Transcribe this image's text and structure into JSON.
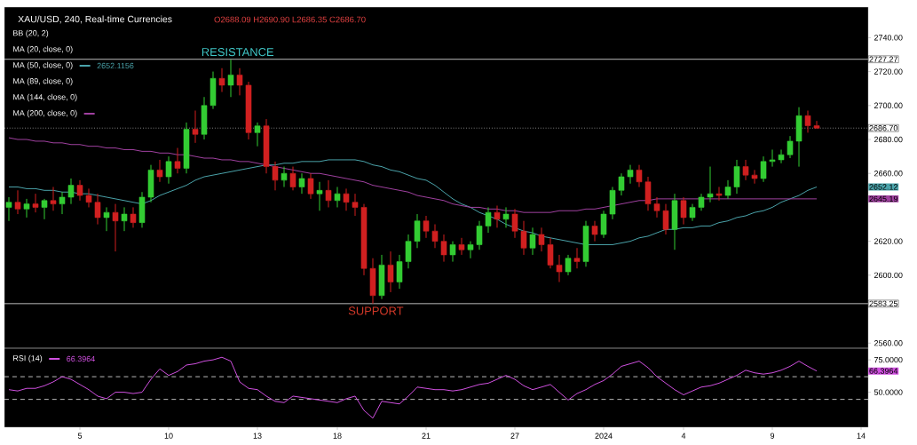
{
  "chart_data": [
    {
      "type": "candlestick",
      "title": "XAU/USD, 240, Real-time Currencies",
      "subtitle": "O2688.09 H2690.90 L2686.35 C2686.70",
      "categories": [
        null,
        null,
        null,
        null,
        null,
        null,
        null,
        null,
        "5",
        null,
        null,
        null,
        null,
        null,
        null,
        null,
        null,
        null,
        "10",
        null,
        null,
        null,
        null,
        null,
        null,
        null,
        null,
        null,
        "13",
        null,
        null,
        null,
        null,
        null,
        null,
        null,
        null,
        "18",
        null,
        null,
        null,
        null,
        null,
        null,
        null,
        null,
        null,
        "21",
        null,
        null,
        null,
        null,
        null,
        null,
        null,
        null,
        null,
        "27",
        null,
        null,
        null,
        null,
        null,
        null,
        null,
        null,
        null,
        "2024",
        null,
        null,
        null,
        null,
        null,
        null,
        null,
        null,
        "4",
        null,
        null,
        null,
        null,
        null,
        null,
        null,
        null,
        null,
        "9",
        null,
        null,
        null,
        null,
        null,
        null,
        null,
        null,
        null,
        "14"
      ],
      "ohlc": [
        [
          2640,
          2646,
          2632,
          2643
        ],
        [
          2643,
          2650,
          2636,
          2639
        ],
        [
          2639,
          2645,
          2634,
          2642
        ],
        [
          2642,
          2648,
          2637,
          2640
        ],
        [
          2640,
          2645,
          2633,
          2644
        ],
        [
          2644,
          2652,
          2638,
          2642
        ],
        [
          2642,
          2649,
          2636,
          2646
        ],
        [
          2646,
          2657,
          2642,
          2653
        ],
        [
          2653,
          2656,
          2644,
          2647
        ],
        [
          2647,
          2651,
          2640,
          2643
        ],
        [
          2643,
          2648,
          2630,
          2634
        ],
        [
          2634,
          2640,
          2626,
          2637
        ],
        [
          2637,
          2642,
          2614,
          2632
        ],
        [
          2632,
          2640,
          2626,
          2636
        ],
        [
          2636,
          2640,
          2628,
          2631
        ],
        [
          2631,
          2649,
          2628,
          2646
        ],
        [
          2646,
          2665,
          2643,
          2662
        ],
        [
          2662,
          2668,
          2655,
          2658
        ],
        [
          2658,
          2670,
          2654,
          2667
        ],
        [
          2667,
          2675,
          2660,
          2663
        ],
        [
          2663,
          2690,
          2660,
          2686
        ],
        [
          2686,
          2697,
          2678,
          2683
        ],
        [
          2683,
          2705,
          2680,
          2700
        ],
        [
          2700,
          2720,
          2698,
          2716
        ],
        [
          2716,
          2722,
          2708,
          2712
        ],
        [
          2712,
          2727,
          2705,
          2718
        ],
        [
          2718,
          2722,
          2706,
          2712
        ],
        [
          2712,
          2714,
          2680,
          2684
        ],
        [
          2684,
          2690,
          2676,
          2688
        ],
        [
          2688,
          2692,
          2660,
          2664
        ],
        [
          2664,
          2667,
          2650,
          2656
        ],
        [
          2656,
          2664,
          2652,
          2660
        ],
        [
          2660,
          2664,
          2650,
          2652
        ],
        [
          2652,
          2660,
          2648,
          2657
        ],
        [
          2657,
          2660,
          2645,
          2648
        ],
        [
          2648,
          2655,
          2638,
          2650
        ],
        [
          2650,
          2656,
          2640,
          2644
        ],
        [
          2644,
          2652,
          2640,
          2648
        ],
        [
          2648,
          2651,
          2638,
          2643
        ],
        [
          2643,
          2648,
          2635,
          2640
        ],
        [
          2640,
          2642,
          2600,
          2604
        ],
        [
          2604,
          2610,
          2583.25,
          2588
        ],
        [
          2588,
          2612,
          2586,
          2606
        ],
        [
          2606,
          2614,
          2590,
          2596
        ],
        [
          2596,
          2612,
          2592,
          2608
        ],
        [
          2608,
          2624,
          2604,
          2620
        ],
        [
          2620,
          2636,
          2616,
          2632
        ],
        [
          2632,
          2635,
          2622,
          2626
        ],
        [
          2626,
          2630,
          2616,
          2620
        ],
        [
          2620,
          2624,
          2608,
          2612
        ],
        [
          2612,
          2620,
          2608,
          2618
        ],
        [
          2618,
          2622,
          2612,
          2615
        ],
        [
          2615,
          2620,
          2610,
          2618
        ],
        [
          2618,
          2632,
          2615,
          2629
        ],
        [
          2629,
          2640,
          2625,
          2637
        ],
        [
          2637,
          2641,
          2628,
          2633
        ],
        [
          2633,
          2640,
          2628,
          2636
        ],
        [
          2636,
          2639,
          2622,
          2626
        ],
        [
          2626,
          2632,
          2612,
          2616
        ],
        [
          2616,
          2628,
          2612,
          2624
        ],
        [
          2624,
          2628,
          2614,
          2618
        ],
        [
          2618,
          2622,
          2604,
          2606
        ],
        [
          2606,
          2612,
          2596,
          2602
        ],
        [
          2602,
          2612,
          2600,
          2610
        ],
        [
          2610,
          2616,
          2604,
          2608
        ],
        [
          2608,
          2632,
          2605,
          2629
        ],
        [
          2629,
          2632,
          2620,
          2624
        ],
        [
          2624,
          2638,
          2622,
          2636
        ],
        [
          2636,
          2652,
          2633,
          2650
        ],
        [
          2650,
          2660,
          2647,
          2658
        ],
        [
          2658,
          2665,
          2654,
          2662
        ],
        [
          2662,
          2665,
          2652,
          2655
        ],
        [
          2655,
          2658,
          2638,
          2642
        ],
        [
          2642,
          2646,
          2634,
          2638
        ],
        [
          2638,
          2642,
          2624,
          2627
        ],
        [
          2627,
          2648,
          2615,
          2644
        ],
        [
          2644,
          2646,
          2630,
          2634
        ],
        [
          2634,
          2642,
          2632,
          2640
        ],
        [
          2640,
          2648,
          2638,
          2646
        ],
        [
          2646,
          2664,
          2643,
          2648
        ],
        [
          2648,
          2652,
          2644,
          2647
        ],
        [
          2647,
          2656,
          2645,
          2652
        ],
        [
          2652,
          2668,
          2648,
          2664
        ],
        [
          2664,
          2668,
          2656,
          2659
        ],
        [
          2659,
          2662,
          2654,
          2657
        ],
        [
          2657,
          2670,
          2655,
          2667
        ],
        [
          2667,
          2674,
          2664,
          2668
        ],
        [
          2668,
          2674,
          2666,
          2671
        ],
        [
          2671,
          2682,
          2669,
          2679
        ],
        [
          2679,
          2699,
          2664,
          2694
        ],
        [
          2694,
          2697,
          2684,
          2688.09
        ],
        [
          2688.09,
          2690.9,
          2686.35,
          2686.7
        ],
        null,
        null,
        null,
        null,
        null
      ],
      "series": [
        {
          "type": "line",
          "name": "MA (50, close, 0)",
          "color": "#4aa3aa",
          "values": [
            2652,
            2652,
            2651,
            2651,
            2650,
            2650,
            2649,
            2649,
            2648,
            2648,
            2647,
            2646,
            2645,
            2644,
            2643,
            2642,
            2644,
            2647,
            2649,
            2651,
            2653,
            2656,
            2658,
            2659,
            2660,
            2661,
            2662,
            2663,
            2664,
            2665,
            2665,
            2666,
            2666,
            2667,
            2667,
            2667,
            2668,
            2668,
            2668,
            2668,
            2667,
            2665,
            2664,
            2662,
            2661,
            2659,
            2657,
            2656,
            2653,
            2649,
            2645,
            2642,
            2640,
            2637,
            2635,
            2633,
            2630,
            2628,
            2626,
            2625,
            2623,
            2622,
            2621,
            2620,
            2619,
            2618,
            2618,
            2618,
            2618,
            2619,
            2620,
            2622,
            2623,
            2625,
            2627,
            2627,
            2628,
            2628,
            2629,
            2629,
            2631,
            2632,
            2634,
            2635,
            2637,
            2638,
            2640,
            2643,
            2645,
            2647,
            2650,
            2652,
            null,
            null,
            null,
            null,
            null
          ]
        },
        {
          "type": "line",
          "name": "MA (200, close, 0)",
          "color": "#a040a0",
          "values": [
            2681,
            2680,
            2680,
            2679,
            2679,
            2678,
            2678,
            2677,
            2677,
            2676,
            2676,
            2675,
            2675,
            2674,
            2674,
            2673,
            2673,
            2672,
            2672,
            2671,
            2671,
            2670,
            2669,
            2669,
            2668,
            2668,
            2667,
            2667,
            2666,
            2665,
            2664,
            2663,
            2662,
            2661,
            2660,
            2660,
            2659,
            2658,
            2657,
            2656,
            2655,
            2653,
            2652,
            2651,
            2650,
            2649,
            2647,
            2646,
            2645,
            2644,
            2642,
            2641,
            2640,
            2640,
            2639,
            2639,
            2638,
            2638,
            2637,
            2637,
            2637,
            2637,
            2638,
            2638,
            2638,
            2639,
            2639,
            2640,
            2641,
            2642,
            2643,
            2644,
            2644,
            2645,
            2645,
            2645,
            2645,
            2645,
            2645,
            2645,
            2645,
            2645,
            2645,
            2645,
            2645,
            2645,
            2645,
            2645,
            2645,
            2645,
            2645,
            2645,
            null,
            null,
            null,
            null,
            null
          ]
        }
      ],
      "ylim": [
        2557,
        2758
      ],
      "yticks": [
        {
          "value": 2560,
          "label": "2560.00"
        },
        {
          "value": 2600,
          "label": "2600.00"
        },
        {
          "value": 2620,
          "label": "2620.00"
        },
        {
          "value": 2660,
          "label": "2660.00"
        },
        {
          "value": 2680,
          "label": "2680.00"
        },
        {
          "value": 2700,
          "label": "2700.00"
        },
        {
          "value": 2720,
          "label": "2720.00"
        },
        {
          "value": 2740,
          "label": "2740.00"
        }
      ],
      "tick_labels": "y",
      "ref_lines": [
        {
          "axis": "y",
          "value": 2727.27,
          "label": "2727.27",
          "color": "#d0d0d0",
          "line_style": "solid"
        },
        {
          "axis": "y",
          "value": 2686.7,
          "label": "2686.70",
          "color": "#a0a0a0",
          "line_style": "dotted"
        },
        {
          "axis": "y",
          "value": 2583.25,
          "label": "2583.25",
          "color": "#d0d0d0",
          "line_style": "solid"
        }
      ],
      "annotations": [
        {
          "text": "RESISTANCE",
          "y": 2727.27
        },
        {
          "text": "SUPPORT",
          "y": 2583.25
        },
        "BB (20, 2)",
        "MA (20, close, 0)",
        "MA (89, close, 0)",
        "MA (144, close, 0)",
        "2652.1156",
        "2652.12",
        "2645.19"
      ],
      "legend": "top left"
    },
    {
      "type": "line",
      "categories": [
        null,
        null,
        null,
        null,
        null,
        null,
        null,
        null,
        "5",
        null,
        null,
        null,
        null,
        null,
        null,
        null,
        null,
        null,
        "10",
        null,
        null,
        null,
        null,
        null,
        null,
        null,
        null,
        null,
        "13",
        null,
        null,
        null,
        null,
        null,
        null,
        null,
        null,
        "18",
        null,
        null,
        null,
        null,
        null,
        null,
        null,
        null,
        null,
        "21",
        null,
        null,
        null,
        null,
        null,
        null,
        null,
        null,
        null,
        "27",
        null,
        null,
        null,
        null,
        null,
        null,
        null,
        null,
        null,
        "2024",
        null,
        null,
        null,
        null,
        null,
        null,
        null,
        null,
        "4",
        null,
        null,
        null,
        null,
        null,
        null,
        null,
        null,
        null,
        "9",
        null,
        null,
        null,
        null,
        null,
        null,
        null,
        null,
        null,
        "14"
      ],
      "series": [
        {
          "name": "RSI (14)",
          "color": "#d050e0",
          "values": [
            52,
            51,
            53,
            53,
            55,
            58,
            62,
            60,
            56,
            52,
            47,
            45,
            50,
            50,
            49,
            50,
            60,
            68,
            63,
            66,
            71,
            72,
            74,
            75,
            77,
            74,
            58,
            53,
            52,
            47,
            43,
            42,
            47,
            46,
            45,
            44,
            43,
            42,
            45,
            47,
            36,
            30,
            43,
            42,
            41,
            47,
            54,
            53,
            52,
            52,
            51,
            52,
            54,
            56,
            57,
            60,
            63,
            60,
            55,
            52,
            54,
            56,
            50,
            44,
            49,
            52,
            56,
            59,
            64,
            70,
            72,
            74,
            69,
            62,
            57,
            52,
            48,
            51,
            54,
            55,
            57,
            60,
            63,
            67,
            65,
            64,
            65,
            67,
            70,
            74,
            70,
            66.4,
            null,
            null,
            null,
            null,
            null
          ]
        }
      ],
      "ylim": [
        23,
        84
      ],
      "yticks": [
        {
          "value": 50,
          "label": "50.0000"
        },
        {
          "value": 75,
          "label": "75.0000"
        }
      ],
      "ref_lines": [
        {
          "axis": "y",
          "value": 62,
          "color": "#d0d0d0",
          "line_style": "dashed"
        },
        {
          "axis": "y",
          "value": 44.5,
          "color": "#d0d0d0",
          "line_style": "dashed"
        }
      ],
      "annotations": [
        "66.3964",
        "66.3964"
      ],
      "legend": "top left"
    }
  ]
}
